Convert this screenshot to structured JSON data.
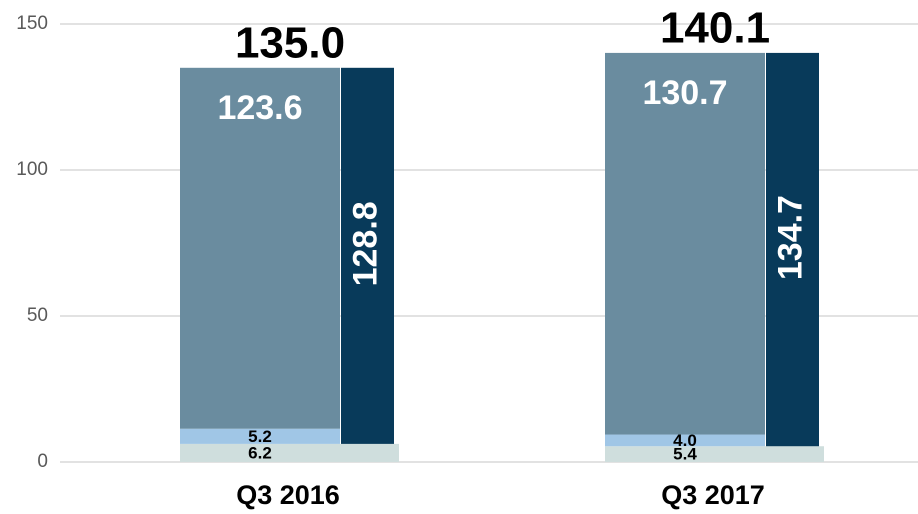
{
  "chart_data": {
    "type": "bar",
    "categories": [
      "Q3 2016",
      "Q3 2017"
    ],
    "series": [
      {
        "color": "#cfdedd",
        "column": "span",
        "values": [
          6.2,
          5.4
        ],
        "label_color": "#000000"
      },
      {
        "color": "#a0c6e6",
        "column": "left",
        "values": [
          5.2,
          4.0
        ],
        "value_labels": [
          "5.2",
          "4.0"
        ],
        "label_color": "#000000"
      },
      {
        "color": "#6a8c9f",
        "column": "left",
        "values": [
          123.6,
          130.7
        ],
        "label_color": "#ffffff"
      },
      {
        "color": "#083a5a",
        "column": "right",
        "values": [
          128.8,
          134.7
        ],
        "label_color": "#ffffff"
      }
    ],
    "totals": [
      135,
      140.1
    ],
    "totals_labels": [
      "135.0",
      "140.1"
    ],
    "ylim": [
      0,
      150
    ],
    "yticks": [
      0,
      50,
      100,
      150
    ],
    "grid": true
  }
}
